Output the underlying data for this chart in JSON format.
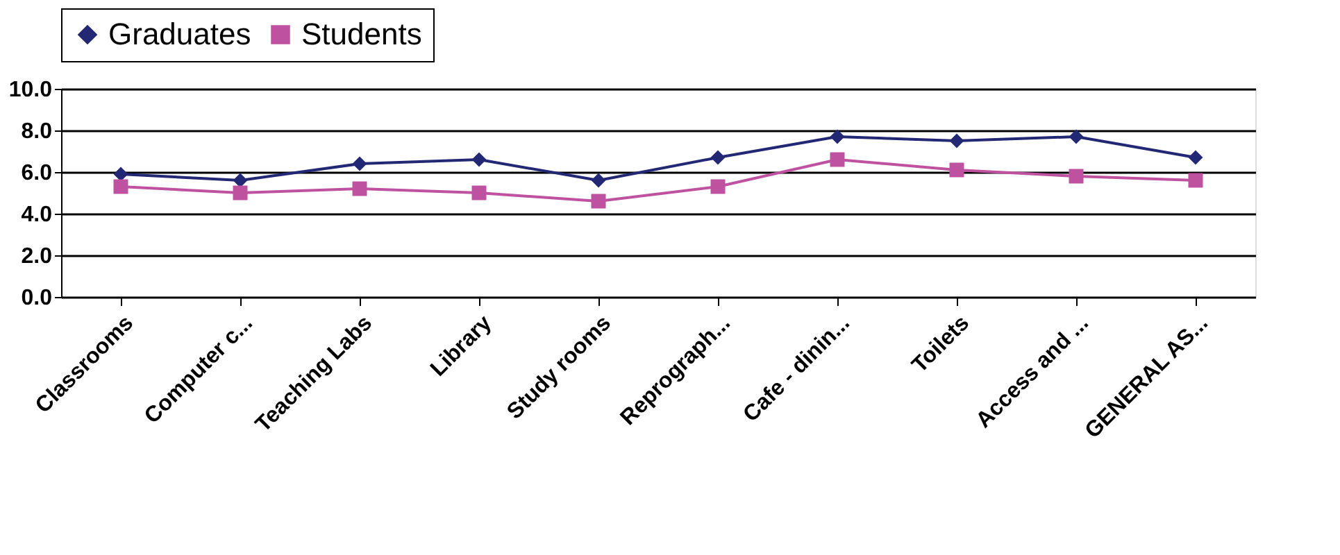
{
  "chart_data": {
    "type": "line",
    "categories": [
      "Classrooms",
      "Computer c...",
      "Teaching Labs",
      "Library",
      "Study rooms",
      "Reprograph...",
      "Cafe - dinin...",
      "Toilets",
      "Access and ...",
      "GENERAL AS..."
    ],
    "series": [
      {
        "name": "Graduates",
        "color": "#232874",
        "marker": "diamond",
        "values": [
          5.9,
          5.6,
          6.4,
          6.6,
          5.6,
          6.7,
          7.7,
          7.5,
          7.7,
          6.7
        ]
      },
      {
        "name": "Students",
        "color": "#bf52a0",
        "marker": "square",
        "values": [
          5.3,
          5.0,
          5.2,
          5.0,
          4.6,
          5.3,
          6.6,
          6.1,
          5.8,
          5.6
        ]
      }
    ],
    "ylim": [
      0,
      10
    ],
    "yticks": [
      {
        "value": 0,
        "label": "0.0"
      },
      {
        "value": 2,
        "label": "2.0"
      },
      {
        "value": 4,
        "label": "4.0"
      },
      {
        "value": 6,
        "label": "6.0"
      },
      {
        "value": 8,
        "label": "8.0"
      },
      {
        "value": 10,
        "label": "10.0"
      }
    ],
    "grid": "y",
    "legend": "top",
    "line_style": "solid"
  }
}
